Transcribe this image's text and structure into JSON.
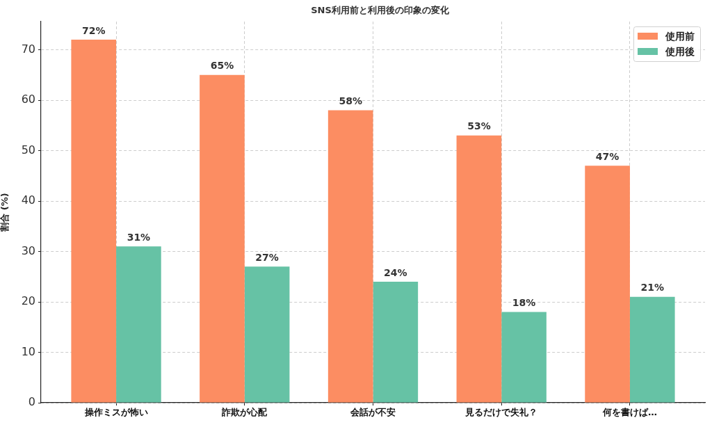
{
  "chart_data": {
    "type": "bar",
    "title": "SNS利用前と利用後の印象の変化",
    "ylabel": "割合 (%)",
    "categories": [
      "操作ミスが怖い",
      "詐欺が心配",
      "会話が不安",
      "見るだけで失礼？",
      "何を書けば…"
    ],
    "series": [
      {
        "name": "使用前",
        "color": "#fc8d62",
        "values": [
          72,
          65,
          58,
          53,
          47
        ],
        "value_labels": [
          "72%",
          "65%",
          "58%",
          "53%",
          "47%"
        ]
      },
      {
        "name": "使用後",
        "color": "#66c2a5",
        "values": [
          31,
          27,
          24,
          18,
          21
        ],
        "value_labels": [
          "31%",
          "27%",
          "24%",
          "18%",
          "21%"
        ]
      }
    ],
    "ylim": [
      0,
      75.6
    ],
    "yticks": [
      0,
      10,
      20,
      30,
      40,
      50,
      60,
      70
    ],
    "grid": true,
    "legend": "top right"
  }
}
